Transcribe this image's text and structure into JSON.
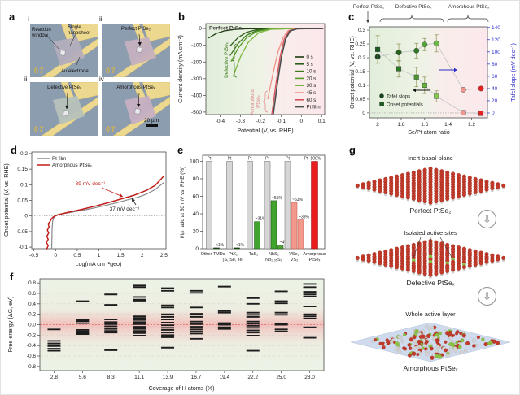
{
  "panels": {
    "a": "a",
    "b": "b",
    "c": "c",
    "d": "d",
    "e": "e",
    "f": "f",
    "g": "g"
  },
  "panel_a": {
    "sub_labels": [
      "i",
      "ii",
      "iii",
      "iv"
    ],
    "ann_reaction_window": "Reaction window",
    "ann_single_nanosheet": "Single nanosheet",
    "ann_au_electrode": "Au electrode",
    "ann_perfect": "Perfect PtSe₂",
    "ann_defective": "Defective PtSeₓ",
    "ann_amorphous": "Amorphous PtSeₓ",
    "marker": "07",
    "scale_bar": "20 μm",
    "colors": {
      "bg": "#8d9db0",
      "gold": "#ecd88e",
      "gold_edge": "#c9b25f",
      "flake_i": "#b4aebd",
      "flake_ii": "#c6b1c0",
      "flake_iii": "#b7c2ba",
      "flake_iv": "#c6b0c2",
      "marker": "#d9b343"
    }
  },
  "chart_data": [
    {
      "panel": "b",
      "type": "line",
      "title_inset": "Perfect PtSe₂",
      "annotation_defective": "Defective PtSeₓ",
      "annotation_amorphous_1": "Amorphous",
      "annotation_amorphous_2": "PtSeₓ",
      "xlabel": "Potential (V, vs. RHE)",
      "ylabel": "Current density (mA cm⁻²)",
      "xlim": [
        -0.47,
        0.115
      ],
      "ylim": [
        -515,
        30
      ],
      "xticks": [
        -0.4,
        -0.3,
        -0.2,
        -0.1,
        0,
        0.1
      ],
      "yticks": [
        0,
        -100,
        -200,
        -300,
        -400,
        -500
      ],
      "legend_position": "inside-right",
      "series": [
        {
          "name": "0 s",
          "color": "#1d3a12",
          "points": [
            [
              -0.455,
              -55
            ],
            [
              -0.42,
              -30
            ],
            [
              -0.38,
              -14
            ],
            [
              -0.33,
              -5
            ],
            [
              -0.28,
              -1.5
            ],
            [
              -0.2,
              0
            ],
            [
              0.105,
              0
            ]
          ]
        },
        {
          "name": "5 s",
          "color": "#2c5c19",
          "points": [
            [
              -0.35,
              -103
            ],
            [
              -0.31,
              -52
            ],
            [
              -0.27,
              -22
            ],
            [
              -0.22,
              -6
            ],
            [
              -0.16,
              -1
            ],
            [
              -0.05,
              0
            ],
            [
              0.105,
              0
            ]
          ]
        },
        {
          "name": "10 s",
          "color": "#3c7a1e",
          "points": [
            [
              -0.35,
              -160
            ],
            [
              -0.31,
              -88
            ],
            [
              -0.27,
              -40
            ],
            [
              -0.22,
              -12
            ],
            [
              -0.16,
              -2
            ],
            [
              -0.05,
              0
            ],
            [
              0.105,
              0
            ]
          ]
        },
        {
          "name": "20 s",
          "color": "#579c25",
          "points": [
            [
              -0.345,
              -195
            ],
            [
              -0.31,
              -115
            ],
            [
              -0.27,
              -55
            ],
            [
              -0.22,
              -18
            ],
            [
              -0.16,
              -3
            ],
            [
              -0.05,
              0
            ],
            [
              0.105,
              0
            ]
          ]
        },
        {
          "name": "30 s",
          "color": "#7cb53b",
          "points": [
            [
              -0.335,
              -285
            ],
            [
              -0.3,
              -170
            ],
            [
              -0.26,
              -80
            ],
            [
              -0.21,
              -25
            ],
            [
              -0.15,
              -4
            ],
            [
              -0.05,
              0
            ],
            [
              0.105,
              0
            ]
          ]
        },
        {
          "name": "45 s",
          "color": "#ef9287",
          "points": [
            [
              -0.165,
              -420
            ],
            [
              -0.14,
              -270
            ],
            [
              -0.115,
              -140
            ],
            [
              -0.09,
              -55
            ],
            [
              -0.065,
              -12
            ],
            [
              -0.03,
              -1
            ],
            [
              0.02,
              0
            ],
            [
              0.105,
              0
            ]
          ]
        },
        {
          "name": "60 s",
          "color": "#d8505c",
          "points": [
            [
              -0.145,
              -510
            ],
            [
              -0.125,
              -330
            ],
            [
              -0.105,
              -170
            ],
            [
              -0.085,
              -65
            ],
            [
              -0.06,
              -14
            ],
            [
              -0.025,
              -1
            ],
            [
              0.02,
              0
            ],
            [
              0.105,
              0
            ]
          ]
        },
        {
          "name": "Pt film",
          "color": "#4b4b4b",
          "points": [
            [
              -0.138,
              -510
            ],
            [
              -0.118,
              -330
            ],
            [
              -0.098,
              -170
            ],
            [
              -0.078,
              -65
            ],
            [
              -0.055,
              -14
            ],
            [
              -0.02,
              -1
            ],
            [
              0.02,
              0
            ],
            [
              0.105,
              0
            ]
          ]
        }
      ]
    },
    {
      "panel": "c",
      "type": "scatter",
      "top_labels": {
        "perfect": "Perfect PtSe₂",
        "defective": "Defective PtSeₓ",
        "amorphous": "Amorphous PtSeₓ"
      },
      "xlabel": "Se/Pt atom ratio",
      "ylabel_left": "Onset potential (V, vs. RHE)",
      "ylabel_right": "Tafel slope (mV dec⁻¹)",
      "right_axis_color": "#2a2ac8",
      "xticks": [
        2,
        1.8,
        1.6,
        1.4,
        1.2
      ],
      "yticks_left": [
        0,
        0.05,
        0.1,
        0.15,
        0.2,
        0.25,
        0.3
      ],
      "yticks_right": [
        0,
        20,
        40,
        60,
        80,
        100,
        120,
        140
      ],
      "x": [
        2.0,
        1.82,
        1.67,
        1.6,
        1.5,
        1.27,
        1.12
      ],
      "series": [
        {
          "name": "Tafel slops",
          "marker": "circle",
          "axis": "right",
          "values": [
            92,
            99,
            102,
            112,
            114,
            38,
            40
          ],
          "errors": [
            10,
            14,
            12,
            10,
            14,
            3,
            3
          ],
          "colors": [
            "#17431d",
            "#26641f",
            "#2f7a24",
            "#53a637",
            "#6cb944",
            "#f4978e",
            "#e42320"
          ]
        },
        {
          "name": "Onset potentials",
          "marker": "square",
          "axis": "left",
          "values": [
            0.23,
            0.16,
            0.13,
            0.1,
            0.06,
            0.001,
            -0.002
          ],
          "errors": [
            0.05,
            0.03,
            0.035,
            0.03,
            0.02,
            0.004,
            0.004
          ],
          "colors": [
            "#1c5a22",
            "#2c7a26",
            "#46992e",
            "#63b33a",
            "#82c94a",
            "#f4978e",
            "#e42320"
          ]
        }
      ]
    },
    {
      "panel": "d",
      "type": "line",
      "xlabel": "Log(mA cm⁻²geo)",
      "ylabel": "Onset potential (V, vs. RHE)",
      "xlim": [
        -0.55,
        2.55
      ],
      "ylim": [
        -0.105,
        0.205
      ],
      "xticks": [
        -0.5,
        0,
        0.5,
        1,
        1.5,
        2,
        2.5
      ],
      "yticks": [
        0.2,
        0.15,
        0.1,
        0.05,
        0,
        -0.05,
        -0.1
      ],
      "annotations": [
        {
          "text": "39 mV dec⁻¹",
          "color": "#c01d18"
        },
        {
          "text": "37 mV dec⁻¹",
          "color": "#222222"
        }
      ],
      "series": [
        {
          "name": "Pt film",
          "color": "#8a8a8a",
          "points": [
            [
              -0.09,
              -0.105
            ],
            [
              -0.085,
              -0.07
            ],
            [
              -0.08,
              -0.045
            ],
            [
              -0.07,
              -0.02
            ],
            [
              -0.05,
              -0.008
            ],
            [
              0,
              0.002
            ],
            [
              0.2,
              0.008
            ],
            [
              0.5,
              0.015
            ],
            [
              0.8,
              0.023
            ],
            [
              1.1,
              0.032
            ],
            [
              1.4,
              0.042
            ],
            [
              1.7,
              0.053
            ],
            [
              1.9,
              0.06
            ],
            [
              2.1,
              0.07
            ],
            [
              2.3,
              0.085
            ],
            [
              2.5,
              0.107
            ]
          ]
        },
        {
          "name": "Amorphous PtSeₓ",
          "color": "#c01d18",
          "points": [
            [
              -0.2,
              -0.105
            ],
            [
              -0.17,
              -0.095
            ],
            [
              -0.21,
              -0.085
            ],
            [
              -0.17,
              -0.075
            ],
            [
              -0.2,
              -0.065
            ],
            [
              -0.16,
              -0.055
            ],
            [
              -0.19,
              -0.045
            ],
            [
              -0.15,
              -0.035
            ],
            [
              -0.17,
              -0.025
            ],
            [
              -0.13,
              -0.018
            ],
            [
              -0.1,
              -0.01
            ],
            [
              -0.05,
              -0.003
            ],
            [
              0.05,
              0.004
            ],
            [
              0.3,
              0.012
            ],
            [
              0.6,
              0.021
            ],
            [
              0.9,
              0.031
            ],
            [
              1.2,
              0.042
            ],
            [
              1.5,
              0.054
            ],
            [
              1.8,
              0.066
            ],
            [
              2.1,
              0.082
            ],
            [
              2.3,
              0.098
            ],
            [
              2.5,
              0.128
            ]
          ]
        }
      ]
    },
    {
      "panel": "e",
      "type": "bar",
      "ylabel": "I/Iₚₜ ratio at 50 mV vs. RHE (%)",
      "yticks": [
        0,
        20,
        40,
        60,
        80,
        100
      ],
      "groups": [
        {
          "label1": "Other TMDs",
          "label2": "",
          "bars": [
            {
              "value": 100,
              "label": "Pt",
              "color": "#d6d6d6",
              "stroke": "#666666"
            },
            {
              "value": 1,
              "label": "<1%",
              "color": "#1b4f15",
              "stroke": "#123709"
            }
          ]
        },
        {
          "label1": "PtX₂",
          "label2": "(S, Se, Te)",
          "bars": [
            {
              "value": 100,
              "label": "Pt",
              "color": "#d6d6d6",
              "stroke": "#666666"
            },
            {
              "value": 1,
              "label": "<1%",
              "color": "#1b4f15",
              "stroke": "#123709"
            }
          ]
        },
        {
          "label1": "TaS₂",
          "label2": "",
          "bars": [
            {
              "value": 100,
              "label": "Pt",
              "color": "#d6d6d6",
              "stroke": "#666666"
            },
            {
              "value": 31,
              "label": "~31%",
              "color": "#3fa32c",
              "stroke": "#1c4a16"
            }
          ]
        },
        {
          "label1": "NbS₂",
          "label2": "Nb₁.₃₅S₂",
          "bars": [
            {
              "value": 100,
              "label": "Pt",
              "color": "#d6d6d6",
              "stroke": "#666666"
            },
            {
              "value": 55,
              "label": "~55%",
              "color": "#3fa32c",
              "stroke": "#1c4a16"
            },
            {
              "value": 4,
              "label": "~4%",
              "color": "#4f9f3a",
              "stroke": "#1c4a16"
            }
          ]
        },
        {
          "label1": "VSe₂",
          "label2": "VS₂",
          "bars": [
            {
              "value": 100,
              "label": "Pt",
              "color": "#d6d6d6",
              "stroke": "#666666"
            },
            {
              "value": 53,
              "label": "~53%",
              "color": "#f2998c",
              "stroke": "#b85548"
            },
            {
              "value": 33,
              "label": "~33%",
              "color": "#f2998c",
              "stroke": "#b85548"
            }
          ]
        },
        {
          "label1": "Amorphous",
          "label2": "PtSeₓ",
          "bars": [
            {
              "value": 100,
              "label": "Pt~100%",
              "color": "#e81e1e",
              "stroke": "#8f0d0d"
            }
          ]
        }
      ]
    },
    {
      "panel": "f",
      "type": "level",
      "xlabel": "Coverage of H atoms (%)",
      "ylabel": "Free energy (ΔG, eV)",
      "ylim": [
        -0.88,
        0.88
      ],
      "yticks": [
        0.8,
        0.6,
        0.4,
        0.2,
        0,
        -0.2,
        -0.4,
        -0.6,
        -0.8
      ],
      "categories": [
        "2.8",
        "5.6",
        "8.3",
        "11.1",
        "13.9",
        "16.7",
        "19.4",
        "22.2",
        "25.0",
        "28.0"
      ],
      "levels": [
        [
          -0.09,
          -0.31,
          -0.36,
          -0.41,
          -0.46,
          -0.5
        ],
        [
          0.45,
          0.1,
          0.07,
          0.03,
          -0.1,
          -0.13,
          -0.16,
          -0.18
        ],
        [
          0.58,
          0.38,
          0.1,
          0.05,
          0.01,
          -0.03,
          -0.08,
          -0.12,
          -0.15,
          -0.49
        ],
        [
          0.75,
          0.72,
          0.53,
          0.48,
          0.46,
          0.16,
          0.13,
          0.09,
          0.05,
          0.01,
          -0.04,
          -0.08,
          -0.12,
          -0.16,
          -0.21
        ],
        [
          0.7,
          0.65,
          0.37,
          0.33,
          0.2,
          0.15,
          0.1,
          0.04,
          -0.01,
          -0.06,
          -0.1,
          -0.15,
          -0.2,
          -0.24,
          -0.44
        ],
        [
          0.65,
          0.61,
          0.33,
          0.21,
          0.15,
          0.06,
          0.01,
          -0.04,
          -0.09,
          -0.13,
          -0.17,
          -0.27
        ],
        [
          0.73,
          0.26,
          0.23,
          0.03,
          0,
          -0.05,
          -0.08
        ],
        [
          0.51,
          0.4,
          0.23,
          0.19,
          0.15,
          0.06,
          0.02,
          -0.02,
          -0.06,
          -0.11,
          -0.15,
          -0.21,
          -0.5
        ],
        [
          0.64,
          0.45,
          0.41,
          0.23,
          0.19,
          0.02,
          0,
          -0.09,
          -0.13
        ],
        [
          0.78,
          0.72,
          0.63,
          0.58,
          0.54,
          0.35,
          0.2,
          0.16,
          0.12,
          -0.05,
          -0.25
        ]
      ]
    }
  ],
  "panel_g": {
    "label_inert": "Inert basal-plane",
    "label_perfect": "Perfect PtSe₂",
    "label_isolated": "Isolated active sites",
    "label_defective": "Defective PtSeₓ",
    "label_whole": "Whole active layer",
    "label_amorphous": "Amorphous PtSeₓ",
    "arrow_glyph": "⇩",
    "atom_colors": {
      "red": "#c23a2a",
      "red_edge": "#7e1f15",
      "gray": "#d2d2d2",
      "gray_edge": "#9a9a9a",
      "green": "#8cc343",
      "green_edge": "#55822a",
      "plane": "#cdd9eb",
      "plane_edge": "#b3c4dc"
    }
  }
}
